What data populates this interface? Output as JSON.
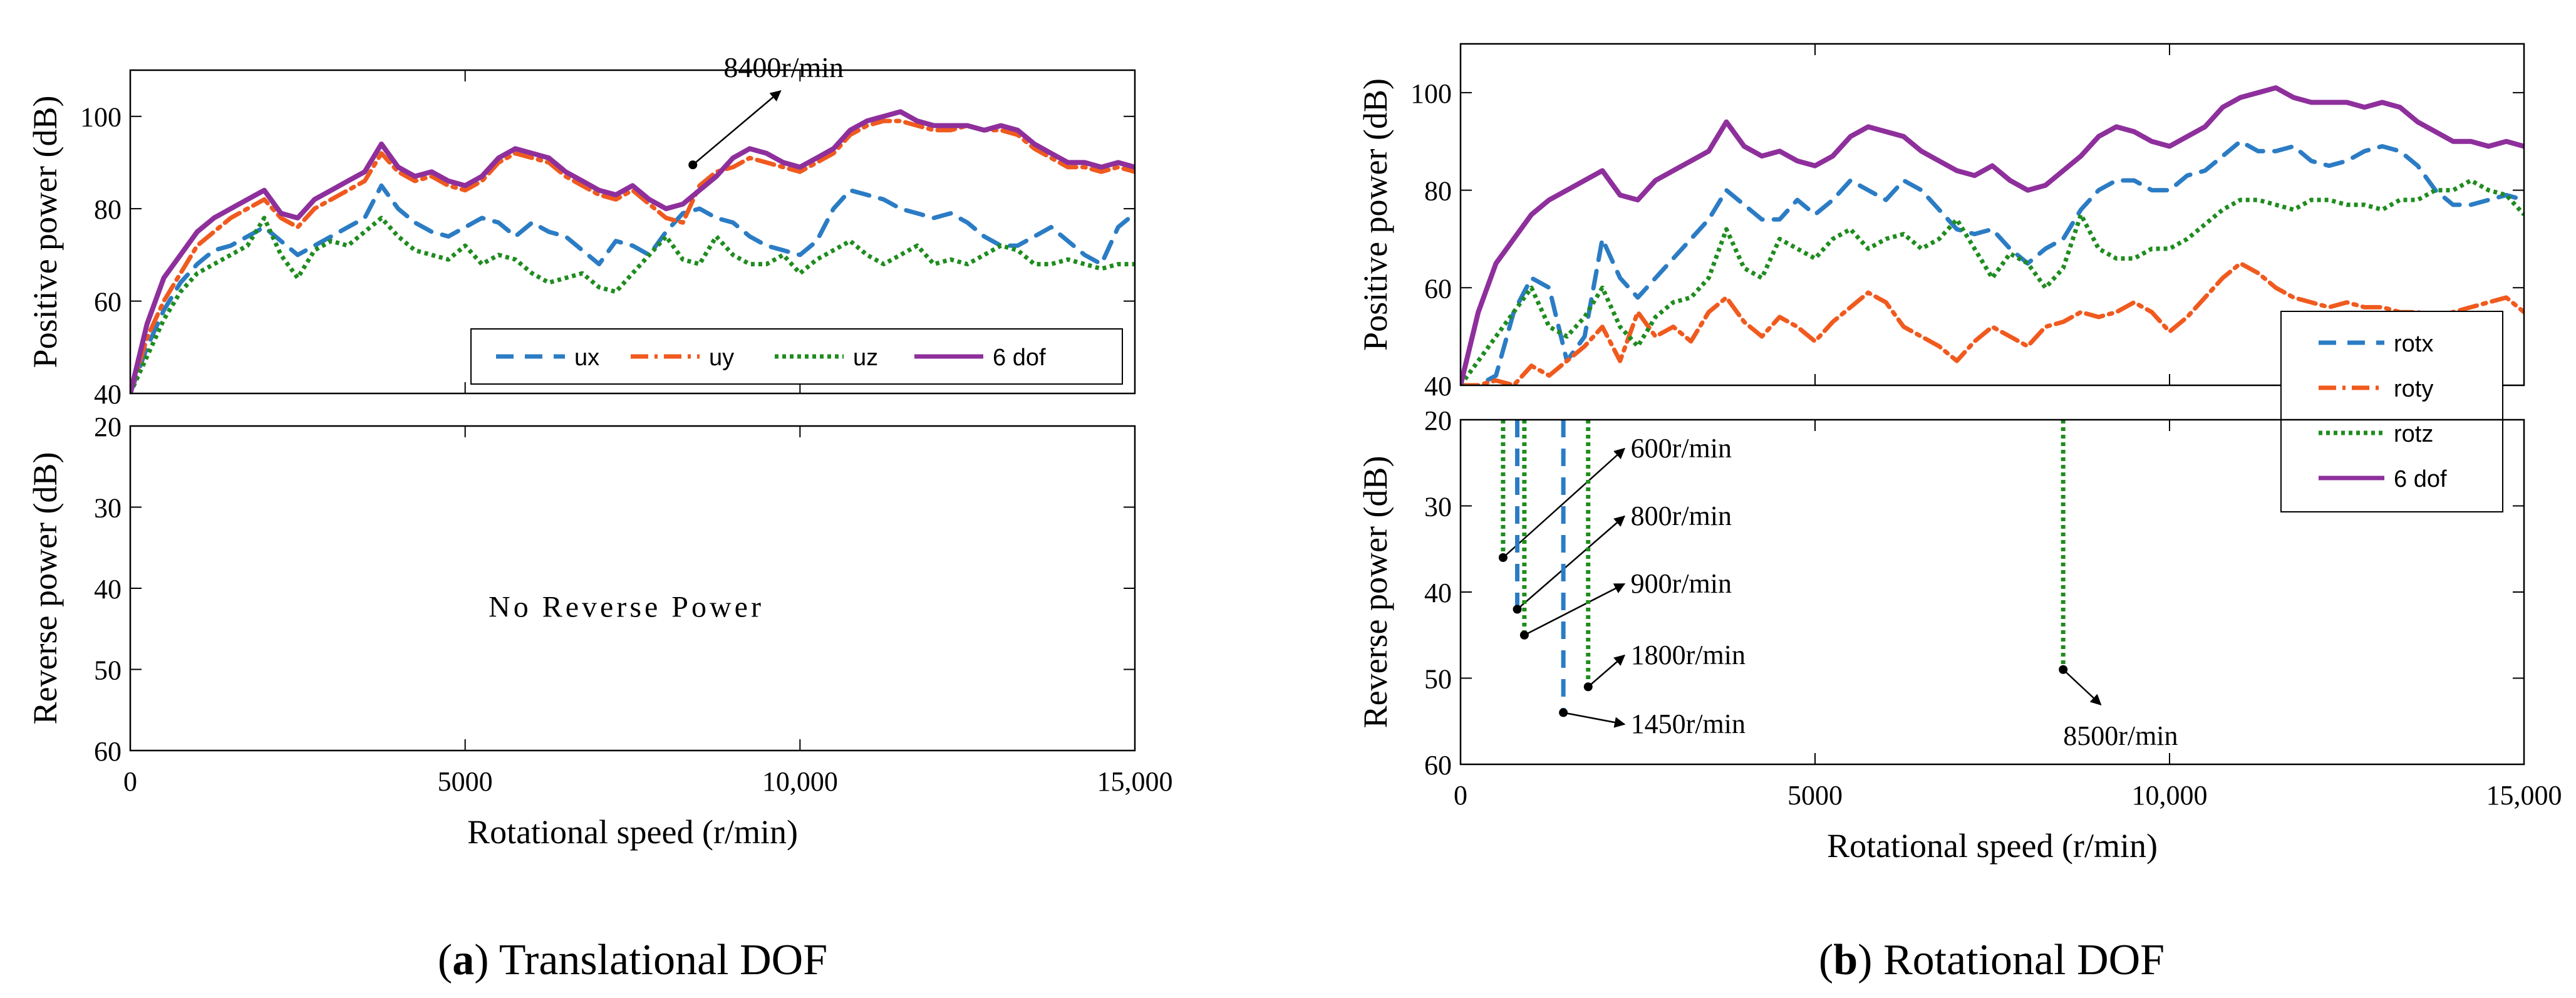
{
  "colors": {
    "ux": "#2b7cc4",
    "uy": "#f05a1e",
    "uz": "#1f8c1f",
    "dof6": "#8e2f9c",
    "rotx": "#2b7cc4",
    "roty": "#f05a1e",
    "rotz": "#1f8c1f",
    "axis": "#000000"
  },
  "chart_data": [
    {
      "type": "line",
      "caption_letter": "a",
      "caption_rest": ") Translational DOF",
      "xlabel": "Rotational speed (r/min)",
      "xlim": [
        0,
        15000
      ],
      "xticks": [
        0,
        5000,
        10000,
        15000
      ],
      "xtick_labels": [
        "0",
        "5000",
        "10,000",
        "15,000"
      ],
      "positive": {
        "ylabel": "Positive power (dB)",
        "ylim": [
          40,
          110
        ],
        "yticks": [
          40,
          60,
          80,
          100
        ],
        "ytick_labels": [
          "40",
          "60",
          "80",
          "100"
        ],
        "legend": {
          "position": "bottom-right",
          "orientation": "horizontal",
          "entries": [
            "ux",
            "uy",
            "uz",
            "6 dof"
          ]
        },
        "x": [
          0,
          250,
          500,
          750,
          1000,
          1250,
          1500,
          1750,
          2000,
          2250,
          2500,
          2750,
          3000,
          3250,
          3500,
          3750,
          4000,
          4250,
          4500,
          4750,
          5000,
          5250,
          5500,
          5750,
          6000,
          6250,
          6500,
          6750,
          7000,
          7250,
          7500,
          7750,
          8000,
          8250,
          8500,
          8750,
          9000,
          9250,
          9500,
          9750,
          10000,
          10250,
          10500,
          10750,
          11000,
          11250,
          11500,
          11750,
          12000,
          12250,
          12500,
          12750,
          13000,
          13250,
          13500,
          13750,
          14000,
          14250,
          14500,
          14750,
          15000
        ],
        "series": [
          {
            "name": "ux",
            "color_key": "ux",
            "dash": "28,18",
            "values": [
              40,
              50,
              58,
              64,
              68,
              71,
              72,
              74,
              76,
              73,
              70,
              72,
              74,
              76,
              78,
              85,
              80,
              77,
              75,
              74,
              76,
              78,
              77,
              74,
              77,
              75,
              74,
              71,
              68,
              73,
              72,
              70,
              75,
              79,
              80,
              78,
              77,
              74,
              72,
              71,
              70,
              73,
              80,
              84,
              83,
              82,
              80,
              79,
              78,
              79,
              77,
              74,
              72,
              72,
              74,
              76,
              73,
              70,
              68,
              76,
              79
            ]
          },
          {
            "name": "uy",
            "color_key": "uy",
            "dash": "28,10,5,10",
            "values": [
              40,
              52,
              60,
              66,
              72,
              75,
              78,
              80,
              82,
              78,
              76,
              80,
              82,
              84,
              86,
              92,
              88,
              86,
              87,
              85,
              84,
              86,
              90,
              92,
              91,
              90,
              87,
              85,
              83,
              82,
              84,
              81,
              78,
              77,
              85,
              88,
              89,
              91,
              90,
              89,
              88,
              90,
              92,
              96,
              98,
              99,
              99,
              98,
              97,
              97,
              98,
              97,
              97,
              96,
              93,
              91,
              89,
              89,
              88,
              89,
              88
            ]
          },
          {
            "name": "uz",
            "color_key": "uz",
            "dash": "6,6",
            "values": [
              40,
              48,
              56,
              62,
              66,
              68,
              70,
              72,
              78,
              70,
              65,
              71,
              73,
              72,
              75,
              78,
              74,
              71,
              70,
              69,
              72,
              68,
              70,
              69,
              66,
              64,
              65,
              66,
              63,
              62,
              66,
              70,
              74,
              69,
              68,
              74,
              70,
              68,
              68,
              70,
              66,
              69,
              71,
              73,
              70,
              68,
              70,
              72,
              68,
              69,
              68,
              70,
              72,
              71,
              68,
              68,
              69,
              68,
              67,
              68,
              68
            ]
          },
          {
            "name": "6 dof",
            "color_key": "dof6",
            "dash": "",
            "values": [
              40,
              55,
              65,
              70,
              75,
              78,
              80,
              82,
              84,
              79,
              78,
              82,
              84,
              86,
              88,
              94,
              89,
              87,
              88,
              86,
              85,
              87,
              91,
              93,
              92,
              91,
              88,
              86,
              84,
              83,
              85,
              82,
              80,
              81,
              84,
              87,
              91,
              93,
              92,
              90,
              89,
              91,
              93,
              97,
              99,
              100,
              101,
              99,
              98,
              98,
              98,
              97,
              98,
              97,
              94,
              92,
              90,
              90,
              89,
              90,
              89
            ]
          }
        ],
        "annotations": [
          {
            "label": "8400r/min",
            "x": 8400,
            "y": 89.5
          }
        ]
      },
      "reverse": {
        "ylabel": "Reverse power (dB)",
        "ylim": [
          20,
          60
        ],
        "yticks": [
          20,
          30,
          40,
          50,
          60
        ],
        "ytick_labels": [
          "20",
          "30",
          "40",
          "50",
          "60"
        ],
        "y_inverted": true,
        "text": "No Reverse Power",
        "dips": []
      }
    },
    {
      "type": "line",
      "caption_letter": "b",
      "caption_rest": ") Rotational DOF",
      "xlabel": "Rotational speed (r/min)",
      "xlim": [
        0,
        15000
      ],
      "xticks": [
        0,
        5000,
        10000,
        15000
      ],
      "xtick_labels": [
        "0",
        "5000",
        "10,000",
        "15,000"
      ],
      "positive": {
        "ylabel": "Positive power (dB)",
        "ylim": [
          40,
          110
        ],
        "yticks": [
          40,
          60,
          80,
          100
        ],
        "ytick_labels": [
          "40",
          "60",
          "80",
          "100"
        ],
        "legend": {
          "position": "right",
          "orientation": "vertical",
          "entries": [
            "rotx",
            "roty",
            "rotz",
            "6 dof"
          ]
        },
        "x": [
          0,
          250,
          500,
          750,
          1000,
          1250,
          1500,
          1750,
          2000,
          2250,
          2500,
          2750,
          3000,
          3250,
          3500,
          3750,
          4000,
          4250,
          4500,
          4750,
          5000,
          5250,
          5500,
          5750,
          6000,
          6250,
          6500,
          6750,
          7000,
          7250,
          7500,
          7750,
          8000,
          8250,
          8500,
          8750,
          9000,
          9250,
          9500,
          9750,
          10000,
          10250,
          10500,
          10750,
          11000,
          11250,
          11500,
          11750,
          12000,
          12250,
          12500,
          12750,
          13000,
          13250,
          13500,
          13750,
          14000,
          14250,
          14500,
          14750,
          15000
        ],
        "series": [
          {
            "name": "rotx",
            "color_key": "rotx",
            "dash": "28,18",
            "values": [
              40,
              40,
              42,
              55,
              62,
              60,
              45,
              50,
              70,
              62,
              58,
              62,
              66,
              70,
              74,
              80,
              77,
              74,
              74,
              78,
              75,
              78,
              82,
              80,
              78,
              82,
              80,
              76,
              72,
              71,
              72,
              68,
              65,
              68,
              70,
              76,
              80,
              82,
              82,
              80,
              80,
              83,
              84,
              87,
              90,
              88,
              88,
              89,
              86,
              85,
              86,
              88,
              89,
              88,
              85,
              80,
              77,
              77,
              78,
              79,
              78
            ]
          },
          {
            "name": "roty",
            "color_key": "roty",
            "dash": "28,10,5,10",
            "values": [
              40,
              40,
              41,
              40,
              44,
              42,
              45,
              48,
              52,
              45,
              55,
              50,
              52,
              49,
              55,
              58,
              53,
              50,
              54,
              52,
              49,
              53,
              56,
              59,
              57,
              52,
              50,
              48,
              45,
              49,
              52,
              50,
              48,
              52,
              53,
              55,
              54,
              55,
              57,
              55,
              51,
              54,
              58,
              62,
              65,
              63,
              60,
              58,
              57,
              56,
              57,
              56,
              56,
              55,
              55,
              54,
              55,
              56,
              57,
              58,
              55
            ]
          },
          {
            "name": "rotz",
            "color_key": "rotz",
            "dash": "6,6",
            "values": [
              40,
              45,
              50,
              55,
              60,
              52,
              50,
              54,
              60,
              52,
              48,
              54,
              57,
              58,
              62,
              72,
              64,
              62,
              70,
              68,
              66,
              70,
              72,
              68,
              70,
              71,
              68,
              70,
              74,
              68,
              62,
              67,
              65,
              60,
              64,
              75,
              68,
              66,
              66,
              68,
              68,
              70,
              73,
              76,
              78,
              78,
              77,
              76,
              78,
              78,
              77,
              77,
              76,
              78,
              78,
              80,
              80,
              82,
              80,
              79,
              75
            ]
          },
          {
            "name": "6 dof",
            "color_key": "dof6",
            "dash": "",
            "values": [
              40,
              55,
              65,
              70,
              75,
              78,
              80,
              82,
              84,
              79,
              78,
              82,
              84,
              86,
              88,
              94,
              89,
              87,
              88,
              86,
              85,
              87,
              91,
              93,
              92,
              91,
              88,
              86,
              84,
              83,
              85,
              82,
              80,
              81,
              84,
              87,
              91,
              93,
              92,
              90,
              89,
              91,
              93,
              97,
              99,
              100,
              101,
              99,
              98,
              98,
              98,
              97,
              98,
              97,
              94,
              92,
              90,
              90,
              89,
              90,
              89
            ]
          }
        ],
        "annotations": []
      },
      "reverse": {
        "ylabel": "Reverse power (dB)",
        "ylim": [
          20,
          60
        ],
        "yticks": [
          20,
          30,
          40,
          50,
          60
        ],
        "ytick_labels": [
          "20",
          "30",
          "40",
          "50",
          "60"
        ],
        "y_inverted": true,
        "text": "",
        "dips": [
          {
            "label": "600r/min",
            "x": 600,
            "y": 36,
            "series": "rotz"
          },
          {
            "label": "800r/min",
            "x": 800,
            "y": 42,
            "series": "rotx"
          },
          {
            "label": "900r/min",
            "x": 900,
            "y": 45,
            "series": "rotz"
          },
          {
            "label": "1800r/min",
            "x": 1800,
            "y": 51,
            "series": "rotz"
          },
          {
            "label": "1450r/min",
            "x": 1450,
            "y": 54,
            "series": "rotx"
          },
          {
            "label": "8500r/min",
            "x": 8500,
            "y": 49,
            "series": "rotz"
          }
        ]
      }
    }
  ]
}
